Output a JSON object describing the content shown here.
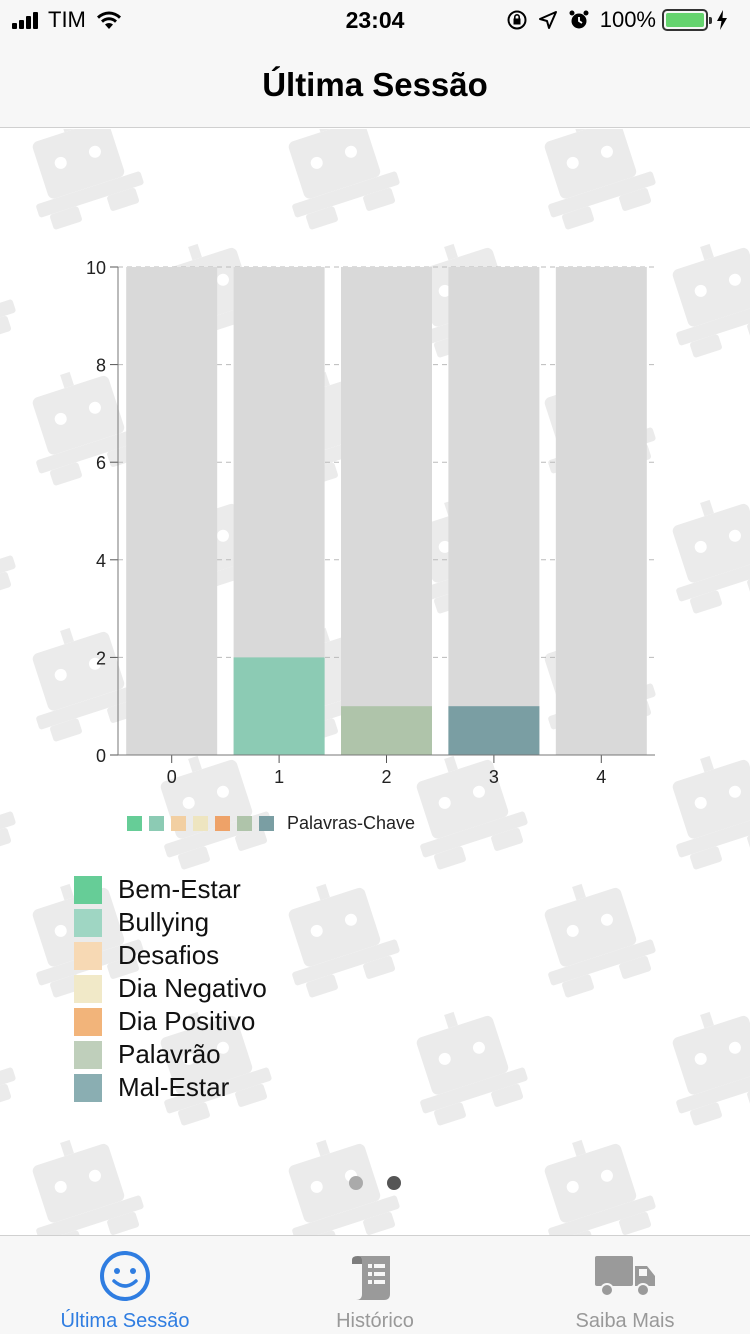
{
  "status_bar": {
    "carrier": "TIM",
    "time": "23:04",
    "battery": "100%",
    "icons": [
      "signal-icon",
      "wifi-icon",
      "orientation-lock-icon",
      "location-icon",
      "alarm-icon",
      "battery-icon",
      "charging-icon"
    ]
  },
  "nav": {
    "title": "Última Sessão"
  },
  "chart_data": {
    "type": "bar",
    "stacked": true,
    "categories": [
      "0",
      "1",
      "2",
      "3",
      "4"
    ],
    "ylim": [
      0,
      10
    ],
    "yticks": [
      "0",
      "2",
      "4",
      "6",
      "8",
      "10"
    ],
    "background_value": 10,
    "background_color": "#d9d9d9",
    "series": [
      {
        "name": "Bullying",
        "values": [
          0,
          2,
          0,
          0,
          0
        ],
        "color": "#8ccbb4"
      },
      {
        "name": "Palavrão",
        "values": [
          0,
          0,
          1,
          0,
          0
        ],
        "color": "#afc4aa"
      },
      {
        "name": "Mal-Estar",
        "values": [
          0,
          0,
          0,
          1,
          0
        ],
        "color": "#7a9ea3"
      }
    ],
    "legend_label": "Palavras-Chave",
    "legend_colors": [
      "#66cd97",
      "#8ccbb4",
      "#f2cfa2",
      "#eee5c0",
      "#eea268",
      "#afc4aa",
      "#7a9ea3"
    ]
  },
  "legend": {
    "items": [
      {
        "label": "Bem-Estar",
        "color": "#66cd97"
      },
      {
        "label": "Bullying",
        "color": "#9fd6c3"
      },
      {
        "label": "Desafios",
        "color": "#f7d9b4"
      },
      {
        "label": "Dia Negativo",
        "color": "#f1e9c8"
      },
      {
        "label": "Dia Positivo",
        "color": "#f2b47a"
      },
      {
        "label": "Palavrão",
        "color": "#bfcfbb"
      },
      {
        "label": "Mal-Estar",
        "color": "#8aaeb2"
      }
    ]
  },
  "pager": {
    "count": 2,
    "active": 1
  },
  "tabs": [
    {
      "label": "Última Sessão",
      "icon": "smiley-icon",
      "active": true
    },
    {
      "label": "Histórico",
      "icon": "document-icon",
      "active": false
    },
    {
      "label": "Saiba Mais",
      "icon": "truck-icon",
      "active": false
    }
  ],
  "colors": {
    "accent": "#2f7de1",
    "inactive": "#999999"
  }
}
